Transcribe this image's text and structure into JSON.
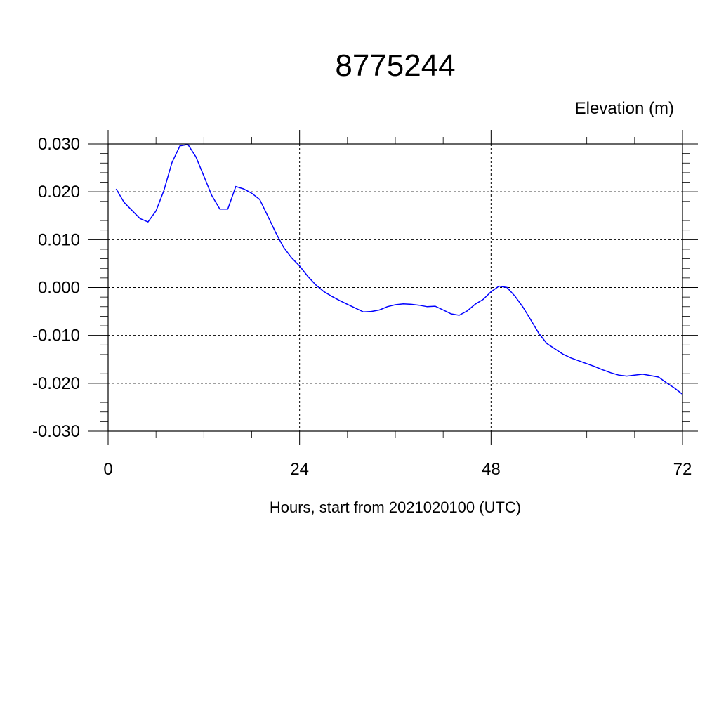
{
  "chart_data": {
    "type": "line",
    "title": "8775244",
    "ylabel": "Elevation (m)",
    "xlabel": "Hours, start from 2021020100 (UTC)",
    "xlim": [
      0,
      72
    ],
    "ylim": [
      -0.03,
      0.03
    ],
    "x_ticks": [
      0,
      24,
      48,
      72
    ],
    "x_tick_labels": [
      "0",
      "24",
      "48",
      "72"
    ],
    "y_ticks": [
      0.03,
      0.02,
      0.01,
      0.0,
      -0.01,
      -0.02,
      -0.03
    ],
    "y_tick_labels": [
      "0.030",
      "0.020",
      "0.010",
      "0.000",
      "-0.010",
      "-0.020",
      "-0.030"
    ],
    "grid": true,
    "series": [
      {
        "color": "#0000ff",
        "x": [
          1,
          2,
          3,
          4,
          5,
          6,
          7,
          8,
          9,
          10,
          11,
          12,
          13,
          14,
          15,
          16,
          17,
          18,
          19,
          20,
          21,
          22,
          23,
          24,
          25,
          26,
          27,
          28,
          29,
          30,
          31,
          32,
          33,
          34,
          35,
          36,
          37,
          38,
          39,
          40,
          41,
          42,
          43,
          44,
          45,
          46,
          47,
          48,
          49,
          50,
          51,
          52,
          53,
          54,
          55,
          56,
          57,
          58,
          59,
          60,
          61,
          62,
          63,
          64,
          65,
          66,
          67,
          68,
          69,
          70,
          71,
          72
        ],
        "y": [
          0.0206,
          0.0178,
          0.0161,
          0.0144,
          0.0137,
          0.016,
          0.0203,
          0.0261,
          0.0296,
          0.0299,
          0.0273,
          0.0233,
          0.0192,
          0.0164,
          0.0164,
          0.0211,
          0.0206,
          0.0197,
          0.0184,
          0.015,
          0.0115,
          0.0084,
          0.0062,
          0.0045,
          0.0024,
          0.0006,
          -0.0008,
          -0.0018,
          -0.0027,
          -0.0035,
          -0.0043,
          -0.0051,
          -0.005,
          -0.0047,
          -0.004,
          -0.0036,
          -0.0034,
          -0.0035,
          -0.0037,
          -0.004,
          -0.0039,
          -0.0047,
          -0.0055,
          -0.0058,
          -0.0049,
          -0.0035,
          -0.0025,
          -0.0009,
          0.0003,
          0.0,
          -0.0018,
          -0.0041,
          -0.0068,
          -0.0096,
          -0.0117,
          -0.0128,
          -0.0139,
          -0.0147,
          -0.0153,
          -0.0159,
          -0.0165,
          -0.0172,
          -0.0178,
          -0.0183,
          -0.0185,
          -0.0183,
          -0.0181,
          -0.0184,
          -0.0187,
          -0.0199,
          -0.021,
          -0.0223
        ]
      }
    ]
  }
}
